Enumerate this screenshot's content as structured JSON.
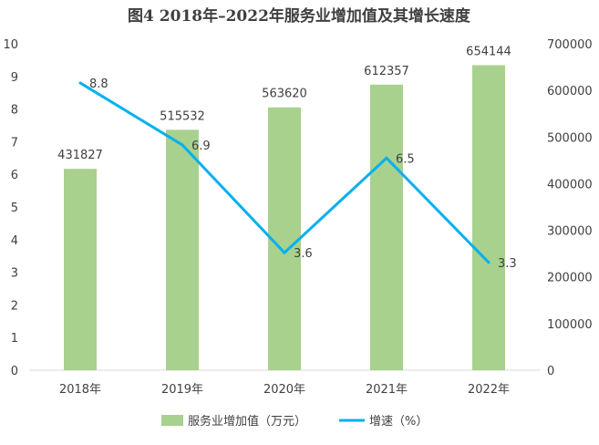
{
  "chart_data": {
    "type": "bar+line",
    "title": "图4  2018年–2022年服务业增加值及其增长速度",
    "categories": [
      "2018年",
      "2019年",
      "2020年",
      "2021年",
      "2022年"
    ],
    "series": [
      {
        "name": "服务业增加值（万元）",
        "type": "bar",
        "axis": "right",
        "values": [
          431827,
          515532,
          563620,
          612357,
          654144
        ],
        "color": "#a9d18e"
      },
      {
        "name": "增速（%）",
        "type": "line",
        "axis": "left",
        "values": [
          8.8,
          6.9,
          3.6,
          6.5,
          3.3
        ],
        "color": "#00b0f0"
      }
    ],
    "left_axis": {
      "range": [
        0,
        10
      ],
      "ticks": [
        "0",
        "1",
        "2",
        "3",
        "4",
        "5",
        "6",
        "7",
        "8",
        "9",
        "10"
      ]
    },
    "right_axis": {
      "range": [
        0,
        700000
      ],
      "ticks": [
        "0",
        "100000",
        "200000",
        "300000",
        "400000",
        "500000",
        "600000",
        "700000"
      ]
    },
    "legend_position": "bottom",
    "grid": false
  }
}
